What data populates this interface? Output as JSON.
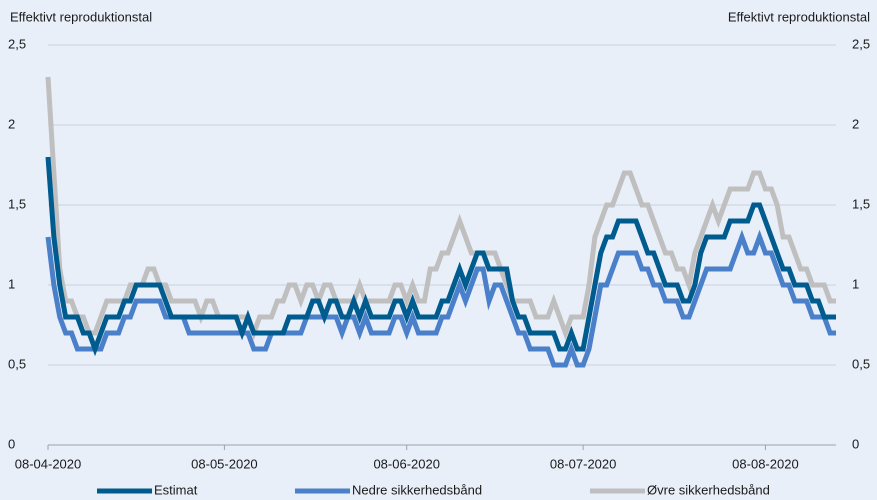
{
  "chart_data": {
    "type": "line",
    "y_label": "Effektivt reproduktionstal",
    "y2_label": "Effektivt reproduktionstal",
    "x": [
      "08-04-2020",
      "09-04-2020",
      "10-04-2020",
      "11-04-2020",
      "12-04-2020",
      "13-04-2020",
      "14-04-2020",
      "15-04-2020",
      "16-04-2020",
      "17-04-2020",
      "18-04-2020",
      "19-04-2020",
      "20-04-2020",
      "21-04-2020",
      "22-04-2020",
      "23-04-2020",
      "24-04-2020",
      "25-04-2020",
      "26-04-2020",
      "27-04-2020",
      "28-04-2020",
      "29-04-2020",
      "30-04-2020",
      "01-05-2020",
      "02-05-2020",
      "03-05-2020",
      "04-05-2020",
      "05-05-2020",
      "06-05-2020",
      "07-05-2020",
      "08-05-2020",
      "09-05-2020",
      "10-05-2020",
      "11-05-2020",
      "12-05-2020",
      "13-05-2020",
      "14-05-2020",
      "15-05-2020",
      "16-05-2020",
      "17-05-2020",
      "18-05-2020",
      "19-05-2020",
      "20-05-2020",
      "21-05-2020",
      "22-05-2020",
      "23-05-2020",
      "24-05-2020",
      "25-05-2020",
      "26-05-2020",
      "27-05-2020",
      "28-05-2020",
      "29-05-2020",
      "30-05-2020",
      "31-05-2020",
      "01-06-2020",
      "02-06-2020",
      "03-06-2020",
      "04-06-2020",
      "05-06-2020",
      "06-06-2020",
      "07-06-2020",
      "08-06-2020",
      "09-06-2020",
      "10-06-2020",
      "11-06-2020",
      "12-06-2020",
      "13-06-2020",
      "14-06-2020",
      "15-06-2020",
      "16-06-2020",
      "17-06-2020",
      "18-06-2020",
      "19-06-2020",
      "20-06-2020",
      "21-06-2020",
      "22-06-2020",
      "23-06-2020",
      "24-06-2020",
      "25-06-2020",
      "26-06-2020",
      "27-06-2020",
      "28-06-2020",
      "29-06-2020",
      "30-06-2020",
      "01-07-2020",
      "02-07-2020",
      "03-07-2020",
      "04-07-2020",
      "05-07-2020",
      "06-07-2020",
      "07-07-2020",
      "08-07-2020",
      "09-07-2020",
      "10-07-2020",
      "11-07-2020",
      "12-07-2020",
      "13-07-2020",
      "14-07-2020",
      "15-07-2020",
      "16-07-2020",
      "17-07-2020",
      "18-07-2020",
      "19-07-2020",
      "20-07-2020",
      "21-07-2020",
      "22-07-2020",
      "23-07-2020",
      "24-07-2020",
      "25-07-2020",
      "26-07-2020",
      "27-07-2020",
      "28-07-2020",
      "29-07-2020",
      "30-07-2020",
      "31-07-2020",
      "01-08-2020",
      "02-08-2020",
      "03-08-2020",
      "04-08-2020",
      "05-08-2020",
      "06-08-2020",
      "07-08-2020",
      "08-08-2020",
      "09-08-2020",
      "10-08-2020",
      "11-08-2020",
      "12-08-2020",
      "13-08-2020",
      "14-08-2020",
      "15-08-2020",
      "16-08-2020",
      "17-08-2020",
      "18-08-2020",
      "19-08-2020",
      "20-08-2020"
    ],
    "series": [
      {
        "name": "Estimat",
        "color": "#005b8e",
        "values": [
          1.8,
          1.3,
          1.0,
          0.8,
          0.8,
          0.8,
          0.7,
          0.7,
          0.6,
          0.7,
          0.8,
          0.8,
          0.8,
          0.9,
          0.9,
          1.0,
          1.0,
          1.0,
          1.0,
          1.0,
          0.9,
          0.8,
          0.8,
          0.8,
          0.8,
          0.8,
          0.8,
          0.8,
          0.8,
          0.8,
          0.8,
          0.8,
          0.8,
          0.7,
          0.8,
          0.7,
          0.7,
          0.7,
          0.7,
          0.7,
          0.7,
          0.8,
          0.8,
          0.8,
          0.8,
          0.9,
          0.9,
          0.8,
          0.9,
          0.9,
          0.8,
          0.8,
          0.9,
          0.8,
          0.9,
          0.8,
          0.8,
          0.8,
          0.8,
          0.9,
          0.9,
          0.8,
          0.9,
          0.8,
          0.8,
          0.8,
          0.8,
          0.9,
          0.9,
          1.0,
          1.1,
          1.0,
          1.1,
          1.2,
          1.2,
          1.1,
          1.1,
          1.1,
          1.1,
          0.9,
          0.8,
          0.8,
          0.7,
          0.7,
          0.7,
          0.7,
          0.7,
          0.6,
          0.6,
          0.7,
          0.6,
          0.6,
          0.8,
          1.0,
          1.2,
          1.3,
          1.3,
          1.4,
          1.4,
          1.4,
          1.4,
          1.3,
          1.2,
          1.2,
          1.1,
          1.0,
          1.0,
          1.0,
          0.9,
          0.9,
          1.0,
          1.2,
          1.3,
          1.3,
          1.3,
          1.3,
          1.4,
          1.4,
          1.4,
          1.4,
          1.5,
          1.5,
          1.4,
          1.3,
          1.2,
          1.1,
          1.1,
          1.0,
          1.0,
          1.0,
          0.9,
          0.9,
          0.8,
          0.8,
          0.8
        ]
      },
      {
        "name": "Nedre sikkerhedsbånd",
        "color": "#4a7fc9",
        "values": [
          1.3,
          1.0,
          0.8,
          0.7,
          0.7,
          0.6,
          0.6,
          0.6,
          0.6,
          0.6,
          0.7,
          0.7,
          0.7,
          0.8,
          0.8,
          0.9,
          0.9,
          0.9,
          0.9,
          0.9,
          0.8,
          0.8,
          0.8,
          0.8,
          0.7,
          0.7,
          0.7,
          0.7,
          0.7,
          0.7,
          0.7,
          0.7,
          0.7,
          0.7,
          0.7,
          0.6,
          0.6,
          0.6,
          0.7,
          0.7,
          0.7,
          0.7,
          0.7,
          0.7,
          0.8,
          0.8,
          0.8,
          0.8,
          0.8,
          0.8,
          0.7,
          0.8,
          0.8,
          0.7,
          0.8,
          0.7,
          0.7,
          0.7,
          0.7,
          0.8,
          0.8,
          0.7,
          0.8,
          0.7,
          0.7,
          0.7,
          0.7,
          0.8,
          0.8,
          0.9,
          1.0,
          0.9,
          1.0,
          1.1,
          1.1,
          0.9,
          1.0,
          1.0,
          0.9,
          0.8,
          0.7,
          0.7,
          0.6,
          0.6,
          0.6,
          0.6,
          0.5,
          0.5,
          0.5,
          0.6,
          0.5,
          0.5,
          0.6,
          0.8,
          1.0,
          1.0,
          1.1,
          1.2,
          1.2,
          1.2,
          1.2,
          1.1,
          1.1,
          1.0,
          1.0,
          0.9,
          0.9,
          0.9,
          0.8,
          0.8,
          0.9,
          1.0,
          1.1,
          1.1,
          1.1,
          1.1,
          1.1,
          1.2,
          1.3,
          1.2,
          1.2,
          1.3,
          1.2,
          1.2,
          1.1,
          1.0,
          1.0,
          0.9,
          0.9,
          0.9,
          0.8,
          0.8,
          0.8,
          0.7,
          0.7
        ]
      },
      {
        "name": "Øvre sikkerhedsbånd",
        "color": "#bfbfbf",
        "values": [
          2.3,
          1.7,
          1.1,
          0.9,
          0.9,
          0.8,
          0.8,
          0.7,
          0.7,
          0.8,
          0.9,
          0.9,
          0.9,
          0.9,
          1.0,
          1.0,
          1.0,
          1.1,
          1.1,
          1.0,
          1.0,
          0.9,
          0.9,
          0.9,
          0.9,
          0.9,
          0.8,
          0.9,
          0.9,
          0.8,
          0.8,
          0.8,
          0.8,
          0.8,
          0.8,
          0.7,
          0.8,
          0.8,
          0.8,
          0.9,
          0.9,
          1.0,
          1.0,
          0.9,
          1.0,
          1.0,
          0.9,
          1.0,
          1.0,
          0.9,
          0.9,
          0.9,
          0.9,
          1.0,
          0.9,
          0.9,
          0.9,
          0.9,
          0.9,
          1.0,
          1.0,
          0.9,
          1.0,
          0.9,
          0.9,
          1.1,
          1.1,
          1.2,
          1.2,
          1.3,
          1.4,
          1.3,
          1.2,
          1.2,
          1.2,
          1.2,
          1.2,
          1.1,
          1.0,
          0.9,
          0.9,
          0.9,
          0.9,
          0.8,
          0.8,
          0.8,
          0.9,
          0.8,
          0.7,
          0.8,
          0.8,
          0.8,
          1.0,
          1.3,
          1.4,
          1.5,
          1.5,
          1.6,
          1.7,
          1.7,
          1.6,
          1.5,
          1.5,
          1.4,
          1.3,
          1.2,
          1.2,
          1.1,
          1.1,
          1.0,
          1.2,
          1.3,
          1.4,
          1.5,
          1.4,
          1.5,
          1.6,
          1.6,
          1.6,
          1.6,
          1.7,
          1.7,
          1.6,
          1.6,
          1.5,
          1.3,
          1.3,
          1.2,
          1.1,
          1.1,
          1.0,
          1.0,
          1.0,
          0.9,
          0.9
        ]
      }
    ],
    "xlim": [
      "08-04-2020",
      "20-08-2020"
    ],
    "xticks": [
      "08-04-2020",
      "08-05-2020",
      "08-06-2020",
      "08-07-2020",
      "08-08-2020"
    ],
    "ylim": [
      0,
      2.5
    ],
    "yticks": [
      0,
      {
        "value": 0.5,
        "label": "0,5"
      },
      1,
      {
        "value": 1.5,
        "label": "1,5"
      },
      2,
      {
        "value": 2.5,
        "label": "2,5"
      }
    ],
    "y2lim": [
      0,
      2.5
    ],
    "y2ticks": [
      0,
      {
        "value": 0.5,
        "label": "0,5"
      },
      1,
      {
        "value": 1.5,
        "label": "1,5"
      },
      2,
      {
        "value": 2.5,
        "label": "2,5"
      }
    ],
    "grid": true,
    "legend": "bottom"
  }
}
